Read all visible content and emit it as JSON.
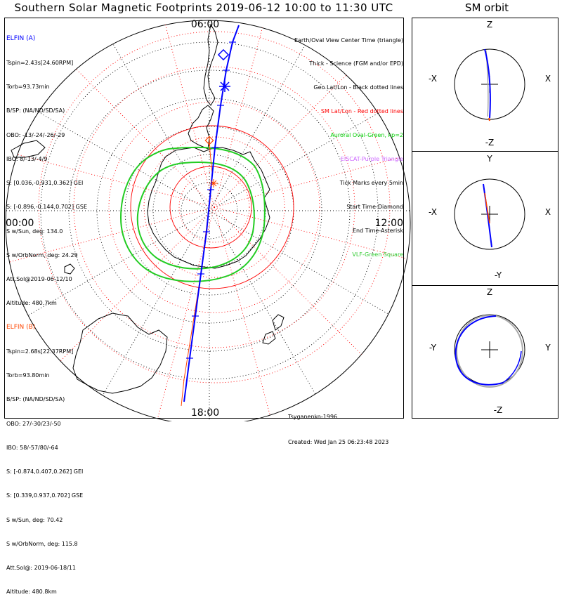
{
  "title": "Southern Solar Magnetic Footprints 2019-06-12 10:00 to 11:30 UTC",
  "sm_title": "SM orbit",
  "map": {
    "time_labels": {
      "top": "06:00",
      "left": "00:00",
      "right": "12:00",
      "bottom": "18:00"
    }
  },
  "elfin_a": {
    "header": "ELFIN (A)",
    "color": "#0000ff",
    "lines": [
      "Tspin=2.43s[24.60RPM]",
      "Torb=93.73min",
      "B/SP: (NA/ND/SD/SA)",
      "OBO: -13/-24/-26/-29",
      "IBO: 8/-13/-4/9",
      "S: [0.036,-0.931,0.362] GEI",
      "S: [-0.896,-0.144,0.702] GSE",
      "S w/Sun, deg: 134.0",
      "S w/OrbNorm, deg: 24.29",
      "Att.Sol@2019-06-12/10",
      "Altitude: 480.7km"
    ]
  },
  "elfin_b": {
    "header": "ELFIN (B)",
    "color": "#ff4500",
    "lines": [
      "Tspin=2.68s[22.37RPM]",
      "Torb=93.80min",
      "B/SP: (NA/ND/SD/SA)",
      "OBO: 27/-30/23/-50",
      "IBO: 58/-57/80/-64",
      "S: [-0.874,0.407,0.262] GEI",
      "S: [0.339,0.937,0.702] GSE",
      "S w/Sun, deg: 70.42",
      "S w/OrbNorm, deg: 115.8",
      "Att.Sol@: 2019-06-18/11",
      "Altitude: 480.8km"
    ]
  },
  "legend": [
    {
      "text": "Earth/Oval View Center Time (triangle)",
      "color": "#000000"
    },
    {
      "text": "Thick - Science (FGM and/or EPD)",
      "color": "#000000"
    },
    {
      "text": "Geo Lat/Lon - Black dotted lines",
      "color": "#000000"
    },
    {
      "text": "SM Lat/Lon - Red dotted lines",
      "color": "#ff0000"
    },
    {
      "text": "Auroral Oval-Green, kp=2",
      "color": "#00cc00"
    },
    {
      "text": "EISCAT-Purple Triangle",
      "color": "#cc66ff"
    },
    {
      "text": "Tick Marks every 5min",
      "color": "#000000"
    },
    {
      "text": "Start Time-Diamond",
      "color": "#000000"
    },
    {
      "text": "End Time-Asterisk",
      "color": "#000000"
    },
    {
      "text": "VLF-Green Square",
      "color": "#33cc33"
    }
  ],
  "credits": {
    "author": "Tsyganenko-1996",
    "created": "Created: Wed Jan 25 06:23:48 2023"
  },
  "orbit_panels": [
    {
      "top": "Z",
      "bottom": "-Z",
      "left": "-X",
      "right": "X"
    },
    {
      "top": "Y",
      "bottom": "-Y",
      "left": "-X",
      "right": "X"
    },
    {
      "top": "Z",
      "bottom": "-Z",
      "left": "-Y",
      "right": "Y"
    }
  ]
}
